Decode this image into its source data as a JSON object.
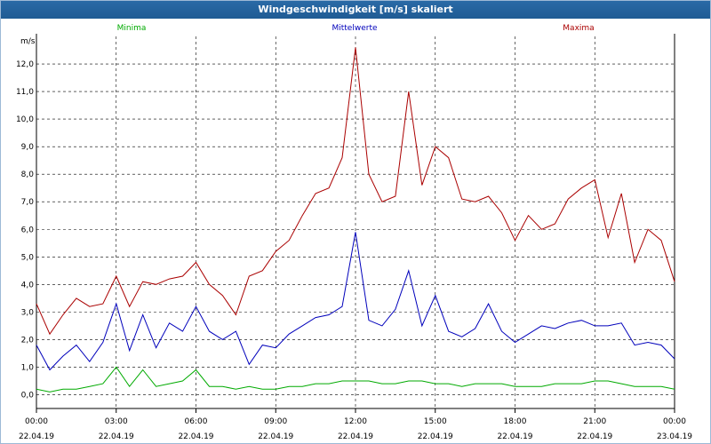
{
  "window": {
    "title": "Windgeschwindigkeit [m/s] skaliert"
  },
  "chart_data": {
    "type": "line",
    "title": "Windgeschwindigkeit [m/s] skaliert",
    "ylabel": "m/s",
    "xlabel": "",
    "ylim": [
      -0.5,
      13.0
    ],
    "xlim": [
      0,
      24
    ],
    "grid": true,
    "y_ticks": [
      "0,0",
      "1,0",
      "2,0",
      "3,0",
      "4,0",
      "5,0",
      "6,0",
      "7,0",
      "8,0",
      "9,0",
      "10,0",
      "11,0",
      "12,0"
    ],
    "x_ticks": [
      {
        "time": "00:00",
        "date": "22.04.19"
      },
      {
        "time": "03:00",
        "date": "22.04.19"
      },
      {
        "time": "06:00",
        "date": "22.04.19"
      },
      {
        "time": "09:00",
        "date": "22.04.19"
      },
      {
        "time": "12:00",
        "date": "22.04.19"
      },
      {
        "time": "15:00",
        "date": "22.04.19"
      },
      {
        "time": "18:00",
        "date": "22.04.19"
      },
      {
        "time": "21:00",
        "date": "22.04.19"
      },
      {
        "time": "00:00",
        "date": "23.04.19"
      }
    ],
    "series": [
      {
        "name": "Minima",
        "color": "#00aa00",
        "x": [
          0,
          0.5,
          1,
          1.5,
          2,
          2.5,
          3,
          3.5,
          4,
          4.5,
          5,
          5.5,
          6,
          6.5,
          7,
          7.5,
          8,
          8.5,
          9,
          9.5,
          10,
          10.5,
          11,
          11.5,
          12,
          12.5,
          13,
          13.5,
          14,
          14.5,
          15,
          15.5,
          16,
          16.5,
          17,
          17.5,
          18,
          18.5,
          19,
          19.5,
          20,
          20.5,
          21,
          21.5,
          22,
          22.5,
          23,
          23.5,
          24
        ],
        "values": [
          0.2,
          0.1,
          0.2,
          0.2,
          0.3,
          0.4,
          1.0,
          0.3,
          0.9,
          0.3,
          0.4,
          0.5,
          0.9,
          0.3,
          0.3,
          0.2,
          0.3,
          0.2,
          0.2,
          0.3,
          0.3,
          0.4,
          0.4,
          0.5,
          0.5,
          0.5,
          0.4,
          0.4,
          0.5,
          0.5,
          0.4,
          0.4,
          0.3,
          0.4,
          0.4,
          0.4,
          0.3,
          0.3,
          0.3,
          0.4,
          0.4,
          0.4,
          0.5,
          0.5,
          0.4,
          0.3,
          0.3,
          0.3,
          0.2
        ]
      },
      {
        "name": "Mittelwerte",
        "color": "#0000bb",
        "x": [
          0,
          0.5,
          1,
          1.5,
          2,
          2.5,
          3,
          3.5,
          4,
          4.5,
          5,
          5.5,
          6,
          6.5,
          7,
          7.5,
          8,
          8.5,
          9,
          9.5,
          10,
          10.5,
          11,
          11.5,
          12,
          12.5,
          13,
          13.5,
          14,
          14.5,
          15,
          15.5,
          16,
          16.5,
          17,
          17.5,
          18,
          18.5,
          19,
          19.5,
          20,
          20.5,
          21,
          21.5,
          22,
          22.5,
          23,
          23.5,
          24
        ],
        "values": [
          1.8,
          0.9,
          1.4,
          1.8,
          1.2,
          1.9,
          3.3,
          1.6,
          2.9,
          1.7,
          2.6,
          2.3,
          3.2,
          2.3,
          2.0,
          2.3,
          1.1,
          1.8,
          1.7,
          2.2,
          2.5,
          2.8,
          2.9,
          3.2,
          5.9,
          2.7,
          2.5,
          3.1,
          4.5,
          2.5,
          3.6,
          2.3,
          2.1,
          2.4,
          3.3,
          2.3,
          1.9,
          2.2,
          2.5,
          2.4,
          2.6,
          2.7,
          2.5,
          2.5,
          2.6,
          1.8,
          1.9,
          1.8,
          1.3
        ]
      },
      {
        "name": "Maxima",
        "color": "#aa0000",
        "x": [
          0,
          0.5,
          1,
          1.5,
          2,
          2.5,
          3,
          3.5,
          4,
          4.5,
          5,
          5.5,
          6,
          6.5,
          7,
          7.5,
          8,
          8.5,
          9,
          9.5,
          10,
          10.5,
          11,
          11.5,
          12,
          12.5,
          13,
          13.5,
          14,
          14.5,
          15,
          15.5,
          16,
          16.5,
          17,
          17.5,
          18,
          18.5,
          19,
          19.5,
          20,
          20.5,
          21,
          21.5,
          22,
          22.5,
          23,
          23.5,
          24
        ],
        "values": [
          3.3,
          2.2,
          2.9,
          3.5,
          3.2,
          3.3,
          4.3,
          3.2,
          4.1,
          4.0,
          4.2,
          4.3,
          4.8,
          4.0,
          3.6,
          2.9,
          4.3,
          4.5,
          5.2,
          5.6,
          6.5,
          7.3,
          7.5,
          8.6,
          12.6,
          8.0,
          7.0,
          7.2,
          11.0,
          7.6,
          9.0,
          8.6,
          7.1,
          7.0,
          7.2,
          6.6,
          5.6,
          6.5,
          6.0,
          6.2,
          7.1,
          7.5,
          7.8,
          5.7,
          7.3,
          4.8,
          6.0,
          5.6,
          4.1
        ]
      }
    ]
  }
}
